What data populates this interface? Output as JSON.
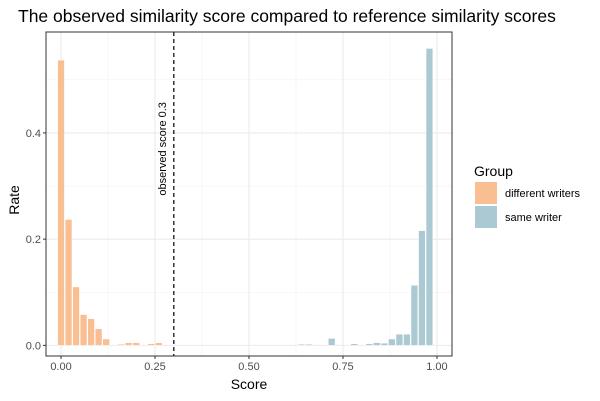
{
  "chart_data": {
    "type": "bar",
    "title": "The observed similarity score compared to reference similarity scores",
    "xlabel": "Score",
    "ylabel": "Rate",
    "xlim": [
      -0.04,
      1.04
    ],
    "ylim": [
      -0.02,
      0.59
    ],
    "x_ticks": [
      0.0,
      0.25,
      0.5,
      0.75,
      1.0
    ],
    "x_tick_labels": [
      "0.00",
      "0.25",
      "0.50",
      "0.75",
      "1.00"
    ],
    "y_ticks": [
      0.0,
      0.2,
      0.4
    ],
    "y_tick_labels": [
      "0.0",
      "0.2",
      "0.4"
    ],
    "bin_width": 0.02,
    "grid": true,
    "legend": {
      "title": "Group",
      "placement": "right"
    },
    "series": [
      {
        "name": "different writers",
        "color": "#F9BE92",
        "bins": [
          {
            "x": 0.0,
            "y": 0.537
          },
          {
            "x": 0.02,
            "y": 0.237
          },
          {
            "x": 0.04,
            "y": 0.11
          },
          {
            "x": 0.06,
            "y": 0.058
          },
          {
            "x": 0.08,
            "y": 0.05
          },
          {
            "x": 0.1,
            "y": 0.031
          },
          {
            "x": 0.12,
            "y": 0.012
          },
          {
            "x": 0.16,
            "y": 0.002
          },
          {
            "x": 0.18,
            "y": 0.005
          },
          {
            "x": 0.2,
            "y": 0.005
          },
          {
            "x": 0.24,
            "y": 0.003
          },
          {
            "x": 0.26,
            "y": 0.005
          }
        ]
      },
      {
        "name": "same writer",
        "color": "#ABC9D3",
        "bins": [
          {
            "x": 0.64,
            "y": 0.002
          },
          {
            "x": 0.66,
            "y": 0.002
          },
          {
            "x": 0.72,
            "y": 0.013
          },
          {
            "x": 0.78,
            "y": 0.003
          },
          {
            "x": 0.82,
            "y": 0.003
          },
          {
            "x": 0.84,
            "y": 0.005
          },
          {
            "x": 0.86,
            "y": 0.004
          },
          {
            "x": 0.88,
            "y": 0.012
          },
          {
            "x": 0.9,
            "y": 0.021
          },
          {
            "x": 0.92,
            "y": 0.021
          },
          {
            "x": 0.94,
            "y": 0.113
          },
          {
            "x": 0.96,
            "y": 0.216
          },
          {
            "x": 0.98,
            "y": 0.559
          }
        ]
      }
    ],
    "annotation": {
      "x": 0.3,
      "label": "observed score 0.3",
      "style": "dashed"
    }
  }
}
